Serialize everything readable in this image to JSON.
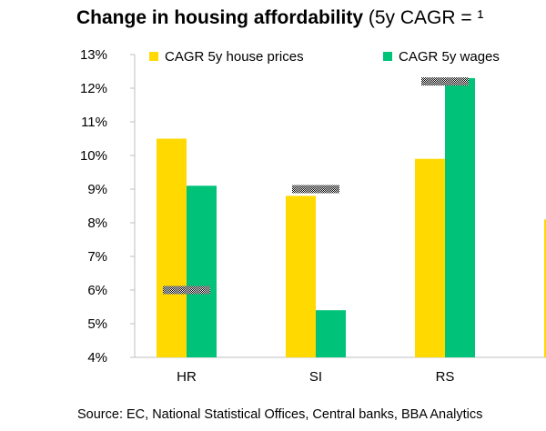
{
  "title": {
    "bold": "Change in housing affordability",
    "rest": " (5y CAGR = ¹"
  },
  "source": "Source: EC, National Statistical Offices, Central banks, BBA Analytics",
  "colors": {
    "house": "#FFD900",
    "wages": "#00C278"
  },
  "chart_data": {
    "type": "bar",
    "categories": [
      "HR",
      "SI",
      "RS"
    ],
    "series": [
      {
        "name": "CAGR  5y house prices",
        "values": [
          10.5,
          8.8,
          9.9
        ]
      },
      {
        "name": "CAGR 5y wages",
        "values": [
          9.1,
          5.4,
          12.3
        ]
      }
    ],
    "markers": [
      6.0,
      9.0,
      12.2
    ],
    "partial_next_value": 8.1,
    "ylim": [
      4,
      13
    ],
    "yticks": [
      "4%",
      "5%",
      "6%",
      "7%",
      "8%",
      "9%",
      "10%",
      "11%",
      "12%",
      "13%"
    ],
    "legend": "top",
    "grid": false
  }
}
